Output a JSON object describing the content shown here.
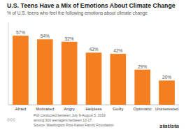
{
  "chart_data": {
    "type": "bar",
    "title": "U.S. Teens Have a Mix of Emotions About Climate Change",
    "subtitle": "% of U.S. teens who feel the following emotions about climate change",
    "categories": [
      "Afraid",
      "Motivated",
      "Angry",
      "Helpless",
      "Guilty",
      "Optimistic",
      "Uninterested"
    ],
    "values": [
      57,
      54,
      52,
      43,
      42,
      29,
      20
    ],
    "value_labels": [
      "57%",
      "54%",
      "52%",
      "43%",
      "42%",
      "29%",
      "20%"
    ],
    "color": "#F47F20",
    "ylim": [
      0,
      68
    ],
    "grid": false,
    "data_labels": true,
    "tick_labels": "x",
    "annotations": [
      "Poll conducted between July 9-August 5, 2019",
      "among 920 teenagers between 13-17.",
      "Source: Washington Post-Kaiser Family Foundation",
      "©©©",
      "statista"
    ]
  }
}
